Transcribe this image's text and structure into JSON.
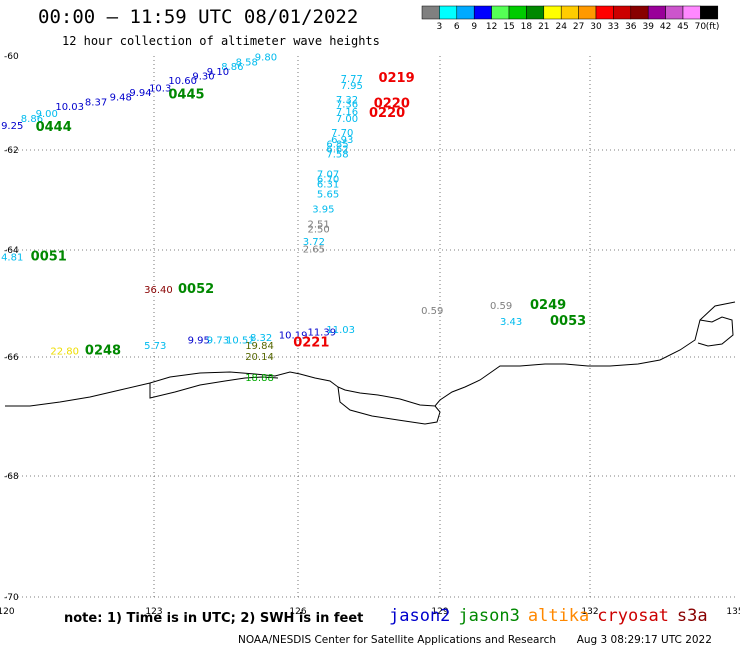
{
  "header": {
    "title": "00:00 – 11:59 UTC 08/01/2022",
    "subtitle": "12 hour collection of altimeter wave heights"
  },
  "colorbar": {
    "colors": [
      "#808080",
      "#00ffff",
      "#00aaff",
      "#0000ff",
      "#55ff55",
      "#00cc00",
      "#008800",
      "#ffff00",
      "#ffcc00",
      "#ff9900",
      "#ff0000",
      "#cc0000",
      "#880000",
      "#990099",
      "#cc55cc",
      "#ff88ff",
      "#000000"
    ],
    "labels": [
      "3",
      "6",
      "9",
      "12",
      "15",
      "18",
      "21",
      "24",
      "27",
      "30",
      "33",
      "36",
      "39",
      "42",
      "45",
      "70"
    ],
    "unit": "(ft)"
  },
  "axes": {
    "lon_ticks": [
      "120",
      "123",
      "126",
      "129",
      "132",
      "135"
    ],
    "lat_ticks": [
      "-60",
      "-62",
      "-64",
      "-66",
      "-68",
      "-70"
    ]
  },
  "observations": [
    {
      "text": "9.80",
      "color": "#00bbee",
      "lon": 125.1,
      "lat": -60.1
    },
    {
      "text": "8.58",
      "color": "#00bbee",
      "lon": 124.7,
      "lat": -60.2
    },
    {
      "text": "8.86",
      "color": "#00bbee",
      "lon": 124.4,
      "lat": -60.3
    },
    {
      "text": "9.10",
      "color": "#0000cc",
      "lon": 124.1,
      "lat": -60.4
    },
    {
      "text": "9.30",
      "color": "#0000cc",
      "lon": 123.8,
      "lat": -60.5
    },
    {
      "text": "10.60",
      "color": "#0000cc",
      "lon": 123.3,
      "lat": -60.6
    },
    {
      "text": "10.3",
      "color": "#0000cc",
      "lon": 122.9,
      "lat": -60.75
    },
    {
      "text": "9.94",
      "color": "#0000cc",
      "lon": 122.5,
      "lat": -60.85
    },
    {
      "text": "9.48",
      "color": "#0000cc",
      "lon": 122.1,
      "lat": -60.95
    },
    {
      "text": "8.37",
      "color": "#0000cc",
      "lon": 121.6,
      "lat": -61.05
    },
    {
      "text": "10.03",
      "color": "#0000cc",
      "lon": 121.0,
      "lat": -61.15
    },
    {
      "text": "9.00",
      "color": "#00bbee",
      "lon": 120.6,
      "lat": -61.3
    },
    {
      "text": "8.86",
      "color": "#00bbee",
      "lon": 120.3,
      "lat": -61.4
    },
    {
      "text": "9.25",
      "color": "#0000cc",
      "lon": 119.9,
      "lat": -61.55
    },
    {
      "text": "0445",
      "color": "#008800",
      "lon": 123.3,
      "lat": -60.9,
      "type": "pass"
    },
    {
      "text": "0444",
      "color": "#008800",
      "lon": 120.6,
      "lat": -61.6,
      "type": "pass"
    },
    {
      "text": "7.77",
      "color": "#00bbee",
      "lon": 126.9,
      "lat": -60.55
    },
    {
      "text": "7.95",
      "color": "#00bbee",
      "lon": 126.9,
      "lat": -60.7
    },
    {
      "text": "0219",
      "color": "#ee0000",
      "lon": 127.7,
      "lat": -60.55,
      "type": "pass"
    },
    {
      "text": "7.32",
      "color": "#00bbee",
      "lon": 126.8,
      "lat": -61.0
    },
    {
      "text": "7.36",
      "color": "#00bbee",
      "lon": 126.8,
      "lat": -61.1
    },
    {
      "text": "7.16",
      "color": "#00bbee",
      "lon": 126.8,
      "lat": -61.25
    },
    {
      "text": "7.00",
      "color": "#00bbee",
      "lon": 126.8,
      "lat": -61.4
    },
    {
      "text": "0220",
      "color": "#ee0000",
      "lon": 127.6,
      "lat": -61.1,
      "type": "pass"
    },
    {
      "text": "0220",
      "color": "#ee0000",
      "lon": 127.5,
      "lat": -61.3,
      "type": "pass"
    },
    {
      "text": "7.70",
      "color": "#00bbee",
      "lon": 126.7,
      "lat": -61.7
    },
    {
      "text": "6.93",
      "color": "#00bbee",
      "lon": 126.7,
      "lat": -61.85
    },
    {
      "text": "6.85",
      "color": "#00bbee",
      "lon": 126.6,
      "lat": -61.95
    },
    {
      "text": "6.62",
      "color": "#00bbee",
      "lon": 126.6,
      "lat": -62.05
    },
    {
      "text": "7.58",
      "color": "#00bbee",
      "lon": 126.6,
      "lat": -62.15
    },
    {
      "text": "7.07",
      "color": "#00bbee",
      "lon": 126.4,
      "lat": -62.55
    },
    {
      "text": "6.70",
      "color": "#00bbee",
      "lon": 126.4,
      "lat": -62.65
    },
    {
      "text": "6.31",
      "color": "#00bbee",
      "lon": 126.4,
      "lat": -62.75
    },
    {
      "text": "5.65",
      "color": "#00bbee",
      "lon": 126.4,
      "lat": -62.95
    },
    {
      "text": "3.95",
      "color": "#00bbee",
      "lon": 126.3,
      "lat": -63.25
    },
    {
      "text": "2.51",
      "color": "#808080",
      "lon": 126.2,
      "lat": -63.55
    },
    {
      "text": "2.50",
      "color": "#808080",
      "lon": 126.2,
      "lat": -63.65
    },
    {
      "text": "3.72",
      "color": "#00bbee",
      "lon": 126.1,
      "lat": -63.9
    },
    {
      "text": "2.65",
      "color": "#808080",
      "lon": 126.1,
      "lat": -64.05
    },
    {
      "text": "4.81",
      "color": "#00bbee",
      "lon": 119.9,
      "lat": -64.2
    },
    {
      "text": "0051",
      "color": "#008800",
      "lon": 120.5,
      "lat": -64.2,
      "type": "pass"
    },
    {
      "text": "36.40",
      "color": "#880000",
      "lon": 122.8,
      "lat": -64.8
    },
    {
      "text": "0052",
      "color": "#008800",
      "lon": 123.5,
      "lat": -64.8,
      "type": "pass"
    },
    {
      "text": "0.59",
      "color": "#808080",
      "lon": 128.6,
      "lat": -65.2
    },
    {
      "text": "0.59",
      "color": "#808080",
      "lon": 130.0,
      "lat": -65.1
    },
    {
      "text": "0249",
      "color": "#008800",
      "lon": 130.8,
      "lat": -65.1,
      "type": "pass"
    },
    {
      "text": "3.43",
      "color": "#00bbee",
      "lon": 130.2,
      "lat": -65.4
    },
    {
      "text": "0053",
      "color": "#008800",
      "lon": 131.2,
      "lat": -65.4,
      "type": "pass"
    },
    {
      "text": "9.95",
      "color": "#0000cc",
      "lon": 123.7,
      "lat": -65.75
    },
    {
      "text": "9.73",
      "color": "#00bbee",
      "lon": 124.1,
      "lat": -65.75
    },
    {
      "text": "10.52",
      "color": "#00bbee",
      "lon": 124.5,
      "lat": -65.75
    },
    {
      "text": "8.32",
      "color": "#00bbee",
      "lon": 125.0,
      "lat": -65.7
    },
    {
      "text": "10.19",
      "color": "#0000cc",
      "lon": 125.6,
      "lat": -65.65
    },
    {
      "text": "11.39",
      "color": "#0000cc",
      "lon": 126.2,
      "lat": -65.6
    },
    {
      "text": "11.03",
      "color": "#00bbee",
      "lon": 126.6,
      "lat": -65.55
    },
    {
      "text": "0221",
      "color": "#ee0000",
      "lon": 125.9,
      "lat": -65.8,
      "type": "pass"
    },
    {
      "text": "19.84",
      "color": "#556600",
      "lon": 124.9,
      "lat": -65.85
    },
    {
      "text": "20.14",
      "color": "#556600",
      "lon": 124.9,
      "lat": -66.05
    },
    {
      "text": "5.73",
      "color": "#00bbee",
      "lon": 122.8,
      "lat": -65.85
    },
    {
      "text": "22.80",
      "color": "#eedd00",
      "lon": 120.9,
      "lat": -65.95
    },
    {
      "text": "0248",
      "color": "#008800",
      "lon": 121.6,
      "lat": -65.95,
      "type": "pass"
    },
    {
      "text": "18.88",
      "color": "#00aa00",
      "lon": 124.9,
      "lat": -66.4
    }
  ],
  "note": "note: 1) Time is in UTC; 2) SWH is in feet",
  "satellites": [
    {
      "name": "jason2",
      "color": "#0000cc"
    },
    {
      "name": "jason3",
      "color": "#008800"
    },
    {
      "name": "altika",
      "color": "#ff8800"
    },
    {
      "name": "cryosat",
      "color": "#cc0000"
    },
    {
      "name": "s3a",
      "color": "#880000"
    }
  ],
  "credit": "NOAA/NESDIS Center for Satellite Applications and Research",
  "timestamp": "Aug 3 08:29:17 UTC 2022"
}
